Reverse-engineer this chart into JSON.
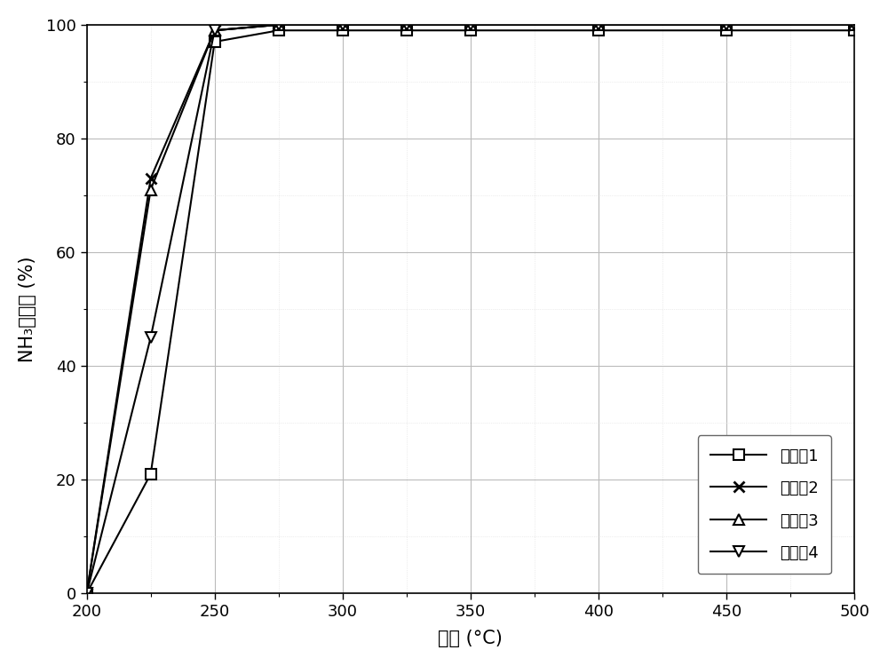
{
  "series": [
    {
      "label": "实施例1",
      "marker": "s",
      "x": [
        200,
        225,
        250,
        275,
        300,
        325,
        350,
        400,
        450,
        500
      ],
      "y": [
        0,
        21,
        97,
        99,
        99,
        99,
        99,
        99,
        99,
        99
      ]
    },
    {
      "label": "实施例2",
      "marker": "x",
      "x": [
        200,
        225,
        250,
        275,
        300,
        325,
        350,
        400,
        450,
        500
      ],
      "y": [
        0,
        73,
        99,
        100,
        100,
        100,
        100,
        100,
        100,
        100
      ]
    },
    {
      "label": "实施例3",
      "marker": "^",
      "x": [
        200,
        225,
        250,
        275,
        300,
        325,
        350,
        400,
        450,
        500
      ],
      "y": [
        0,
        71,
        99,
        100,
        100,
        100,
        100,
        100,
        100,
        100
      ]
    },
    {
      "label": "实施例4",
      "marker": "v",
      "x": [
        200,
        225,
        250,
        275,
        300,
        325,
        350,
        400,
        450,
        500
      ],
      "y": [
        0,
        45,
        99,
        100,
        100,
        100,
        100,
        100,
        100,
        100
      ]
    }
  ],
  "xlabel": "温度 (°C)",
  "ylabel": "NH₃转化率 (%)",
  "xlim": [
    200,
    500
  ],
  "ylim": [
    0,
    100
  ],
  "xticks": [
    200,
    250,
    300,
    350,
    400,
    450,
    500
  ],
  "yticks": [
    0,
    20,
    40,
    60,
    80,
    100
  ],
  "line_color": "#000000",
  "grid_major_color": "#bbbbbb",
  "grid_minor_color": "#dddddd",
  "bg_color": "#ffffff",
  "fontsize_label": 15,
  "fontsize_tick": 13,
  "fontsize_legend": 13,
  "linewidth": 1.5,
  "markersize": 8
}
